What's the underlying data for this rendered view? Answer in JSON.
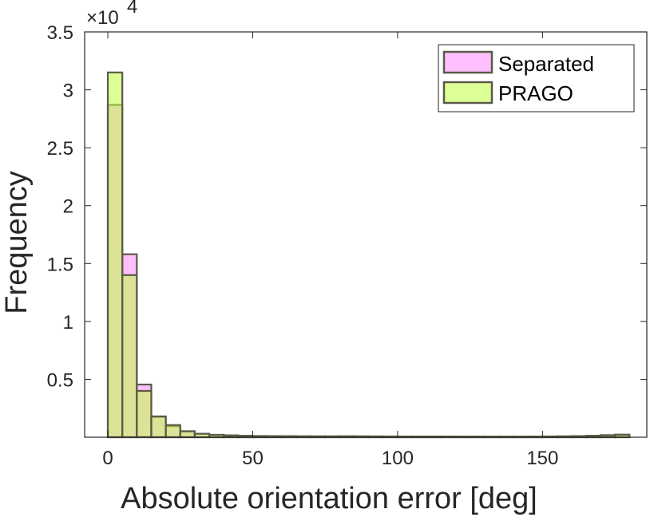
{
  "chart_data": {
    "type": "bar",
    "xlabel": "Absolute orientation error [deg]",
    "ylabel": "Frequency",
    "y_exponent_label": {
      "base": "×10",
      "exponent": "4"
    },
    "xlim": [
      -8,
      186
    ],
    "ylim": [
      0,
      35000
    ],
    "xticks": [
      0,
      50,
      100,
      150
    ],
    "xtick_labels": [
      "0",
      "50",
      "100",
      "150"
    ],
    "yticks": [
      5000,
      10000,
      15000,
      20000,
      25000,
      30000,
      35000
    ],
    "ytick_labels": [
      "0.5",
      "1",
      "1.5",
      "2",
      "2.5",
      "3",
      "3.5"
    ],
    "bin_edges": [
      0,
      5,
      10,
      15,
      20,
      25,
      30,
      35,
      40,
      45,
      50,
      55,
      60,
      65,
      70,
      75,
      80,
      85,
      90,
      95,
      100,
      105,
      110,
      115,
      120,
      125,
      130,
      135,
      140,
      145,
      150,
      155,
      160,
      165,
      170,
      175,
      180
    ],
    "series": [
      {
        "name": "Separated",
        "color": "#ff00ff",
        "values": [
          28700,
          15800,
          4550,
          1750,
          950,
          500,
          300,
          200,
          150,
          120,
          100,
          90,
          80,
          75,
          70,
          70,
          75,
          70,
          65,
          60,
          60,
          55,
          55,
          50,
          50,
          50,
          45,
          45,
          45,
          50,
          60,
          70,
          90,
          120,
          170,
          210
        ]
      },
      {
        "name": "PRAGO",
        "color": "#bfff3f",
        "values": [
          31500,
          14000,
          4000,
          1800,
          1050,
          520,
          300,
          210,
          160,
          120,
          100,
          90,
          85,
          80,
          75,
          75,
          80,
          75,
          70,
          65,
          60,
          60,
          55,
          55,
          50,
          50,
          50,
          45,
          50,
          55,
          65,
          75,
          95,
          125,
          175,
          220
        ]
      }
    ],
    "legend": {
      "placement": "top-right",
      "entries": [
        "Separated",
        "PRAGO"
      ]
    },
    "grid": false
  }
}
